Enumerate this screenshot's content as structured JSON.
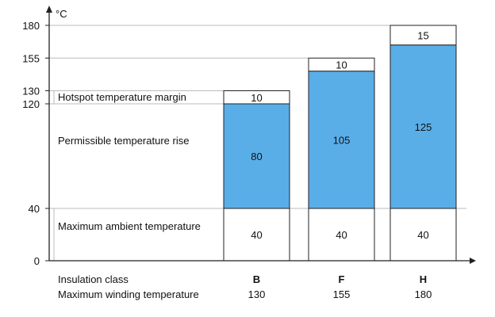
{
  "chart_data": {
    "type": "bar",
    "unit": "°C",
    "yticks": [
      0,
      40,
      120,
      130,
      155,
      180
    ],
    "ylim": [
      0,
      180
    ],
    "row_labels": {
      "hotspot": "Hotspot temperature margin",
      "rise": "Permissible temperature rise",
      "ambient": "Maximum ambient temperature",
      "class": "Insulation class",
      "winding": "Maximum winding temperature"
    },
    "categories": [
      "B",
      "F",
      "H"
    ],
    "winding_temperature": [
      "130",
      "155",
      "180"
    ],
    "segments": {
      "ambient": [
        40,
        40,
        40
      ],
      "rise": [
        80,
        105,
        125
      ],
      "hotspot": [
        10,
        10,
        15
      ]
    },
    "colors": {
      "rise": "#5aaee8",
      "box": "#ffffff",
      "line": "#222222",
      "grid": "#bbbbbb"
    }
  }
}
